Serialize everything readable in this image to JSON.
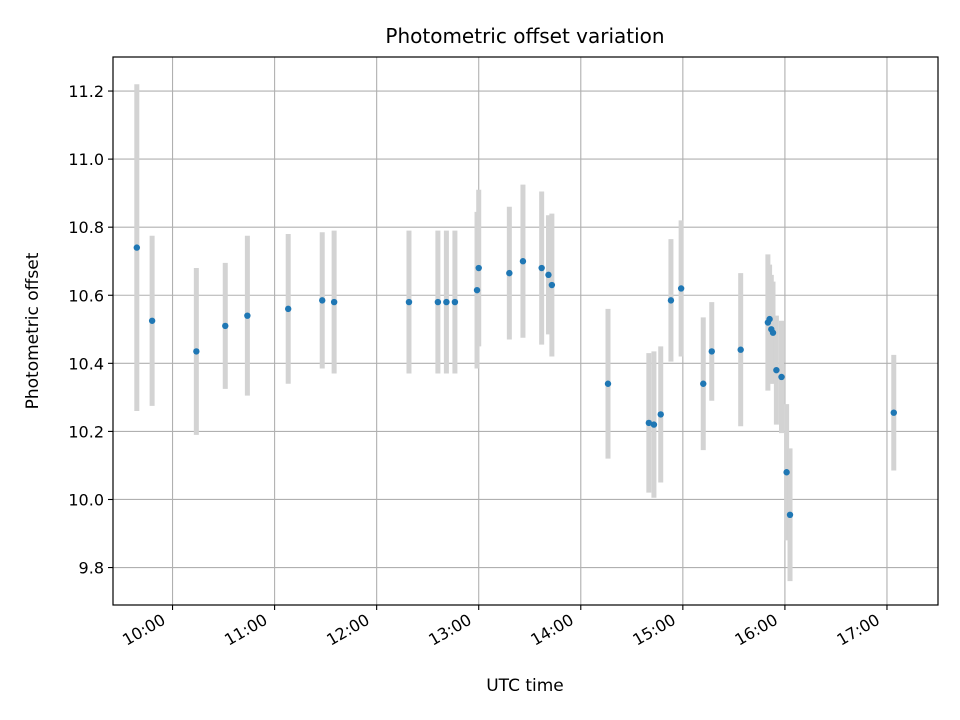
{
  "chart_data": {
    "type": "scatter",
    "title": "Photometric offset variation",
    "xlabel": "UTC time",
    "ylabel": "Photometric offset",
    "x_tick_labels": [
      "10:00",
      "11:00",
      "12:00",
      "13:00",
      "14:00",
      "15:00",
      "16:00",
      "17:00"
    ],
    "y_tick_labels": [
      "9.8",
      "10.0",
      "10.2",
      "10.4",
      "10.6",
      "10.8",
      "11.0",
      "11.2"
    ],
    "xlim": [
      "09:25",
      "17:30"
    ],
    "ylim": [
      9.69,
      11.3
    ],
    "grid": true,
    "colors": {
      "point": "#1f77b4",
      "errorbar": "#d3d3d3",
      "grid": "#b0b0b0"
    },
    "points": [
      {
        "x": "09:39",
        "y": 10.74,
        "err": 0.48
      },
      {
        "x": "09:48",
        "y": 10.525,
        "err": 0.25
      },
      {
        "x": "10:14",
        "y": 10.435,
        "err": 0.245
      },
      {
        "x": "10:31",
        "y": 10.51,
        "err": 0.185
      },
      {
        "x": "10:44",
        "y": 10.54,
        "err": 0.235
      },
      {
        "x": "11:08",
        "y": 10.56,
        "err": 0.22
      },
      {
        "x": "11:28",
        "y": 10.585,
        "err": 0.2
      },
      {
        "x": "11:35",
        "y": 10.58,
        "err": 0.21
      },
      {
        "x": "12:19",
        "y": 10.58,
        "err": 0.21
      },
      {
        "x": "12:36",
        "y": 10.58,
        "err": 0.21
      },
      {
        "x": "12:41",
        "y": 10.58,
        "err": 0.21
      },
      {
        "x": "12:46",
        "y": 10.58,
        "err": 0.21
      },
      {
        "x": "12:59",
        "y": 10.615,
        "err": 0.23
      },
      {
        "x": "13:00",
        "y": 10.68,
        "err": 0.23
      },
      {
        "x": "13:18",
        "y": 10.665,
        "err": 0.195
      },
      {
        "x": "13:26",
        "y": 10.7,
        "err": 0.225
      },
      {
        "x": "13:37",
        "y": 10.68,
        "err": 0.225
      },
      {
        "x": "13:41",
        "y": 10.66,
        "err": 0.175
      },
      {
        "x": "13:43",
        "y": 10.63,
        "err": 0.21
      },
      {
        "x": "14:16",
        "y": 10.34,
        "err": 0.22
      },
      {
        "x": "14:40",
        "y": 10.225,
        "err": 0.205
      },
      {
        "x": "14:43",
        "y": 10.22,
        "err": 0.215
      },
      {
        "x": "14:47",
        "y": 10.25,
        "err": 0.2
      },
      {
        "x": "14:53",
        "y": 10.585,
        "err": 0.18
      },
      {
        "x": "14:59",
        "y": 10.62,
        "err": 0.2
      },
      {
        "x": "15:12",
        "y": 10.34,
        "err": 0.195
      },
      {
        "x": "15:17",
        "y": 10.435,
        "err": 0.145
      },
      {
        "x": "15:34",
        "y": 10.44,
        "err": 0.225
      },
      {
        "x": "15:50",
        "y": 10.52,
        "err": 0.2
      },
      {
        "x": "15:51",
        "y": 10.53,
        "err": 0.16
      },
      {
        "x": "15:52",
        "y": 10.5,
        "err": 0.16
      },
      {
        "x": "15:53",
        "y": 10.49,
        "err": 0.15
      },
      {
        "x": "15:55",
        "y": 10.38,
        "err": 0.16
      },
      {
        "x": "15:58",
        "y": 10.36,
        "err": 0.165
      },
      {
        "x": "16:01",
        "y": 10.08,
        "err": 0.2
      },
      {
        "x": "16:03",
        "y": 9.955,
        "err": 0.195
      },
      {
        "x": "17:04",
        "y": 10.255,
        "err": 0.17
      }
    ]
  }
}
